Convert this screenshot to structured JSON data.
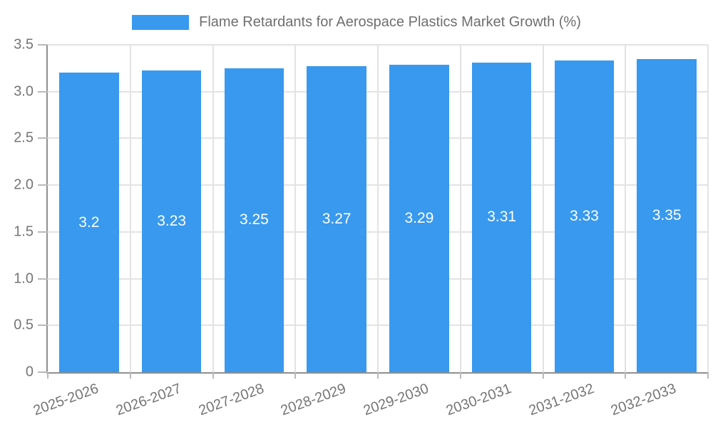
{
  "chart_data": {
    "type": "bar",
    "title": "Flame Retardants for Aerospace Plastics Market Growth (%)",
    "categories": [
      "2025-2026",
      "2026-2027",
      "2027-2028",
      "2028-2029",
      "2029-2030",
      "2030-2031",
      "2031-2032",
      "2032-2033"
    ],
    "values": [
      3.2,
      3.23,
      3.25,
      3.27,
      3.29,
      3.31,
      3.33,
      3.35
    ],
    "value_labels": [
      "3.2",
      "3.23",
      "3.25",
      "3.27",
      "3.29",
      "3.31",
      "3.33",
      "3.35"
    ],
    "xlabel": "",
    "ylabel": "",
    "ylim": [
      0,
      3.5
    ],
    "ytick_step": 0.5,
    "ytick_labels": [
      "0",
      "0.5",
      "1.0",
      "1.5",
      "2.0",
      "2.5",
      "3.0",
      "3.5"
    ],
    "grid": true,
    "legend_position": "top",
    "x_tick_rotation_deg": -20,
    "bar_width_fraction": 0.72,
    "colors": {
      "bar": "#3899ee",
      "bar_label": "#ffffff",
      "axis_text": "#757575",
      "title_text": "#6f6f6f",
      "grid_line": "#e3e3e3",
      "axis_line": "#8f8f8f",
      "tick_line": "#b9b9b9",
      "background": "#ffffff"
    }
  }
}
